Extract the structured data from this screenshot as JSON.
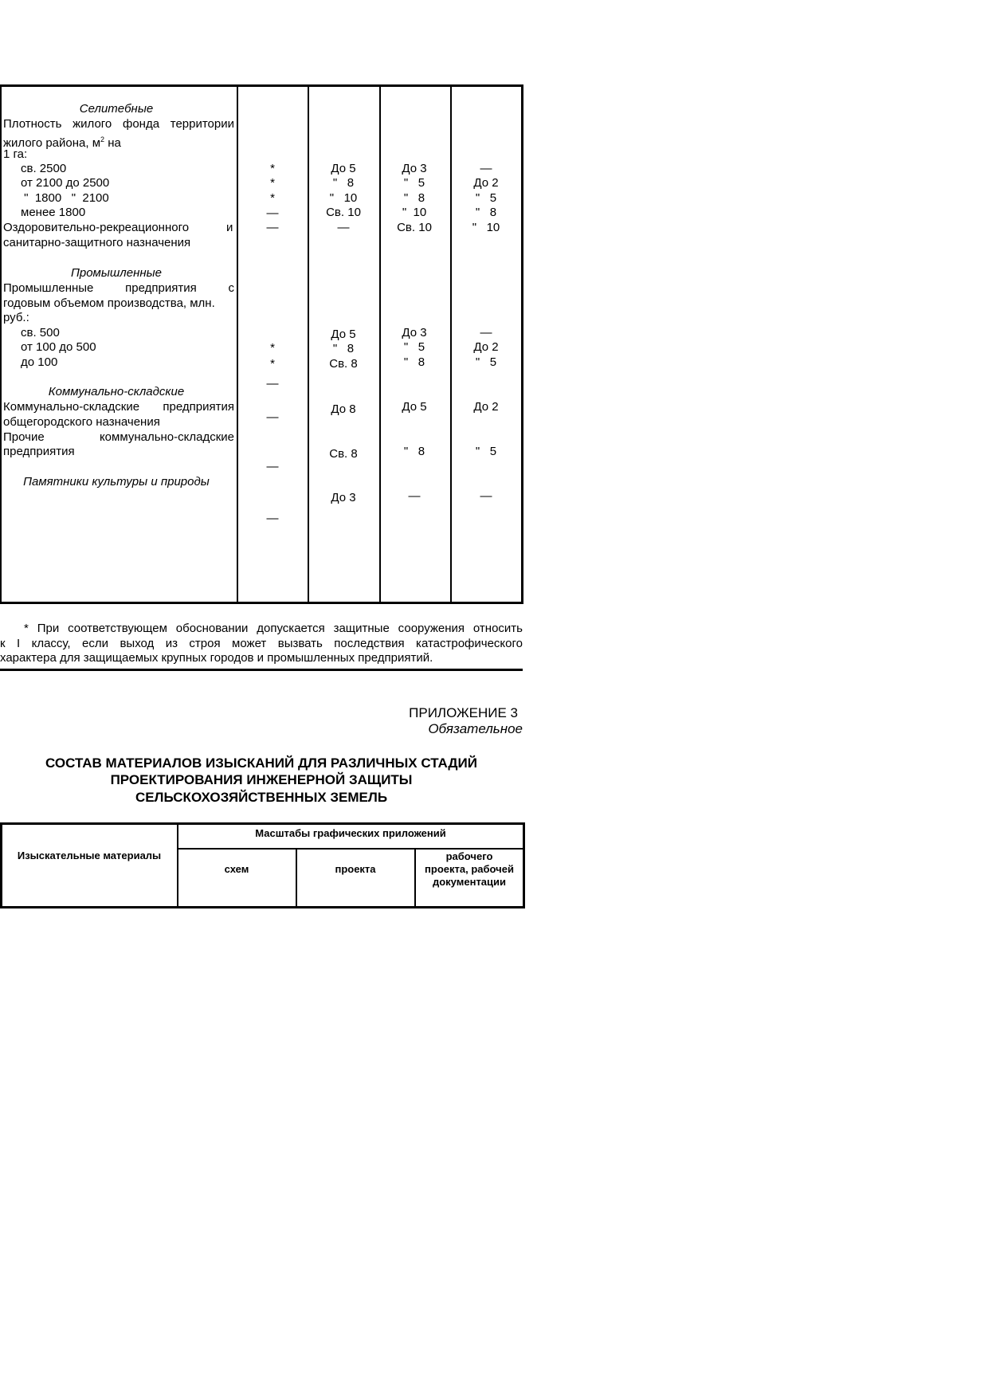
{
  "table1": {
    "sections": {
      "residential": "Селитебные",
      "industrial": "Промышленные",
      "communal": "Коммунально-складские",
      "monuments": "Памятники культуры и природы"
    },
    "col1": {
      "density_l1": "Плотность жилого фонда территории",
      "density_l2": "жилого района, м",
      "density_sup": "2",
      "density_l2b": " на",
      "density_l3": "1 га:",
      "r1": "св. 2500",
      "r2": "от 2100 до 2500",
      "r3": " \"  1800   \"  2100",
      "r4": "менее 1800",
      "rec_l1a": "Оздоровительно-рекреационного",
      "rec_l1b": "и",
      "rec_l2": "санитарно-защитного назначения",
      "ind_l1": "Промышленные предприятия с",
      "ind_l2": "годовым объемом производства, млн.",
      "ind_l3": "руб.:",
      "i1": "св. 500",
      "i2": "от 100 до 500",
      "i3": "до 100",
      "com_l1": "Коммунально-складские предприятия",
      "com_l2": "общегородского назначения",
      "oth_l1": "Прочие коммунально-складские",
      "oth_l2": "предприятия"
    },
    "col2": [
      "*",
      "*",
      "*",
      "—",
      "—",
      "*",
      "*",
      "—",
      "—",
      "—",
      "—"
    ],
    "col3": [
      "До 5",
      "\"   8",
      "\"   10",
      "Св. 10",
      "—",
      "До 5",
      "\"   8",
      "Св. 8",
      "До 8",
      "Св. 8",
      "До 3"
    ],
    "col4": [
      "До 3",
      "\"   5",
      "\"   8",
      "\"  10",
      "Св. 10",
      "До 3",
      "\"   5",
      "\"   8",
      "До 5",
      "\"   8",
      "—"
    ],
    "col5": [
      "—",
      "До 2",
      "\"   5",
      "\"   8",
      "\"   10",
      "—",
      "До 2",
      "\"   5",
      "До 2",
      "\"   5",
      "—"
    ]
  },
  "footnote": {
    "l1": "* При соответствующем обосновании допускается защитные сооружения относить",
    "l2": "к I классу, если выход из строя может вызвать последствия катастрофического",
    "l3": "характера для защищаемых крупных городов и промышленных предприятий."
  },
  "appendix": {
    "label": "ПРИЛОЖЕНИЕ 3",
    "status": "Обязательное",
    "title_l1": "СОСТАВ МАТЕРИАЛОВ ИЗЫСКАНИЙ ДЛЯ РАЗЛИЧНЫХ СТАДИЙ",
    "title_l2": "ПРОЕКТИРОВАНИЯ ИНЖЕНЕРНОЙ ЗАЩИТЫ",
    "title_l3": "СЕЛЬСКОХОЗЯЙСТВЕННЫХ ЗЕМЕЛЬ"
  },
  "table2": {
    "col_materials": "Изыскательные материалы",
    "col_group": "Масштабы графических приложений",
    "col_schemes": "схем",
    "col_project": "проекта",
    "col_working_l1": "рабочего",
    "col_working_l2": "проекта, рабочей",
    "col_working_l3": "документации"
  }
}
